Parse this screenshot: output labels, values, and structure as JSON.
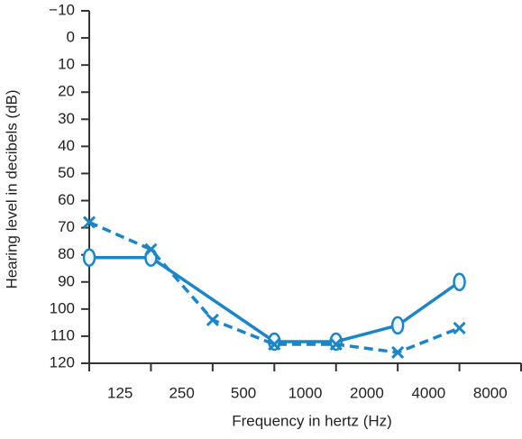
{
  "chart_data": {
    "type": "line",
    "xlabel": "Frequency in hertz (Hz)",
    "ylabel": "Hearing level in decibels (dB)",
    "categories": [
      "125",
      "250",
      "500",
      "1000",
      "2000",
      "4000",
      "8000"
    ],
    "ylim": [
      -10,
      120
    ],
    "y_inverted": true,
    "yticks": [
      {
        "value": -10,
        "label": "−10"
      },
      0,
      10,
      20,
      30,
      40,
      50,
      60,
      70,
      80,
      90,
      100,
      110,
      120
    ],
    "series": [
      {
        "color": "#1a86c8",
        "marker": "o",
        "dashed": false,
        "x": [
          "125",
          "250",
          "1000",
          "2000",
          "4000",
          "8000"
        ],
        "values": [
          81,
          81,
          112,
          112,
          106,
          90
        ]
      },
      {
        "color": "#1a86c8",
        "marker": "x",
        "dashed": true,
        "x": [
          "125",
          "250",
          "500",
          "1000",
          "2000",
          "4000",
          "8000"
        ],
        "values": [
          68,
          78,
          104,
          113,
          113,
          116,
          107
        ]
      }
    ]
  }
}
